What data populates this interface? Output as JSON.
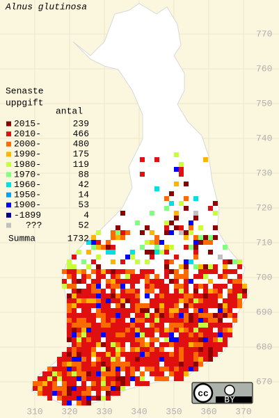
{
  "title": "Alnus glutinosa",
  "legend": {
    "title_lines": [
      "Senaste",
      "uppgift"
    ],
    "count_header": "antal",
    "rows": [
      {
        "label": "2015-",
        "count": 239,
        "color": "#8b0000"
      },
      {
        "label": "2010-",
        "count": 466,
        "color": "#e01010"
      },
      {
        "label": "2000-",
        "count": 480,
        "color": "#ff6a00"
      },
      {
        "label": "1990-",
        "count": 175,
        "color": "#ffb400"
      },
      {
        "label": "1980-",
        "count": 119,
        "color": "#c8ff3c"
      },
      {
        "label": "1970-",
        "count": 88,
        "color": "#80ff80"
      },
      {
        "label": "1960-",
        "count": 42,
        "color": "#00e0e0"
      },
      {
        "label": "1950-",
        "count": 14,
        "color": "#00a0ff"
      },
      {
        "label": "1900-",
        "count": 53,
        "color": "#0000ff"
      },
      {
        "label": "-1899",
        "count": 4,
        "color": "#000080"
      },
      {
        "label": "???",
        "count": 52,
        "color": "#c0c0c0"
      }
    ],
    "total": {
      "label": "Summa",
      "count": 1732
    }
  },
  "grid": {
    "y_labels": [
      770,
      760,
      750,
      740,
      730,
      720,
      710,
      700,
      690,
      680,
      670
    ],
    "x_labels": [
      310,
      320,
      330,
      340,
      350,
      360,
      370
    ]
  },
  "license": {
    "cc": "cc",
    "by": "BY"
  }
}
